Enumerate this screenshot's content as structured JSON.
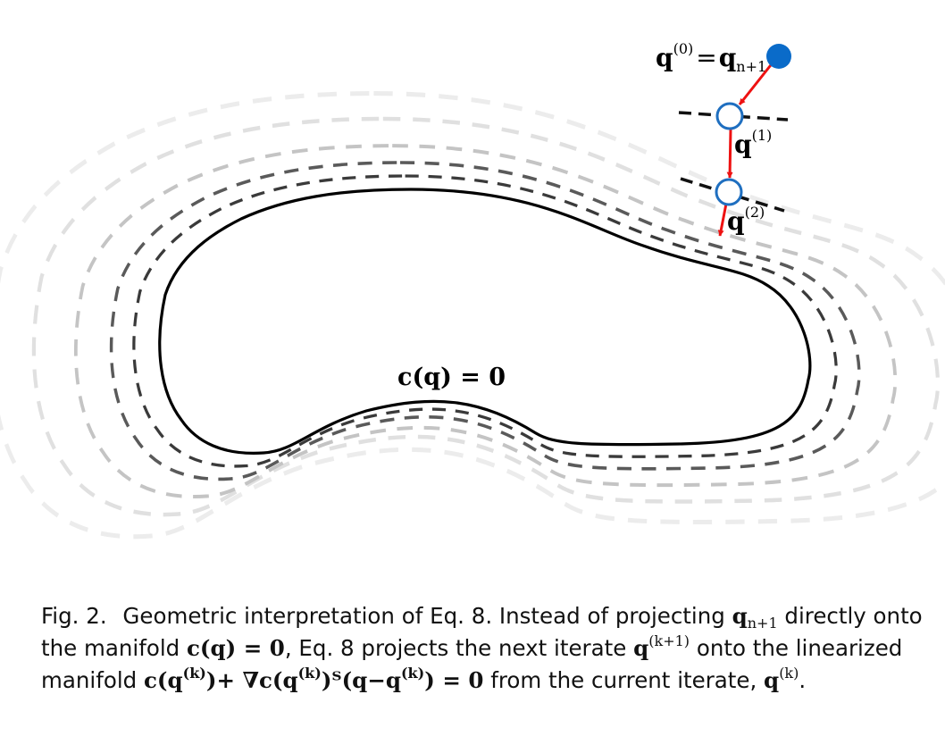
{
  "labels": {
    "manifold": "c(q) = 0",
    "start_q": "q",
    "start_sup": "(0)",
    "start_eq": "=",
    "start_qn": "q",
    "start_sub": "n+1",
    "iter1_q": "q",
    "iter1_sup": "(1)",
    "iter2_q": "q",
    "iter2_sup": "(2)"
  },
  "caption": {
    "label": "Fig. 2.",
    "p1": "Geometric interpretation of Eq. 8. Instead of projecting",
    "q": "q",
    "sub_n1": "n+1",
    "p2": "directly onto the manifold",
    "manifold": "c(q) = 0",
    "p3": ", Eq. 8 projects the next iterate",
    "sup_k1": "(k+1)",
    "p4": "onto the linearized manifold",
    "lin_c": "c(q",
    "sup_k": "(k)",
    "lin_plus": ")+ ∇c(q",
    "lin_T": ")ᵀ(q−q",
    "lin_end": ") = 0",
    "p5": "from the current iterate,",
    "end": "."
  },
  "colors": {
    "start_point": "#0a6bc9",
    "iterate_stroke": "#1f6fc0",
    "arrow": "#ee1111",
    "manifold": "#000000",
    "contour_dark": "#444444",
    "contour_mid": "#888888",
    "contour_light": "#c4c4c4",
    "contour_faint": "#e2e2e2"
  }
}
